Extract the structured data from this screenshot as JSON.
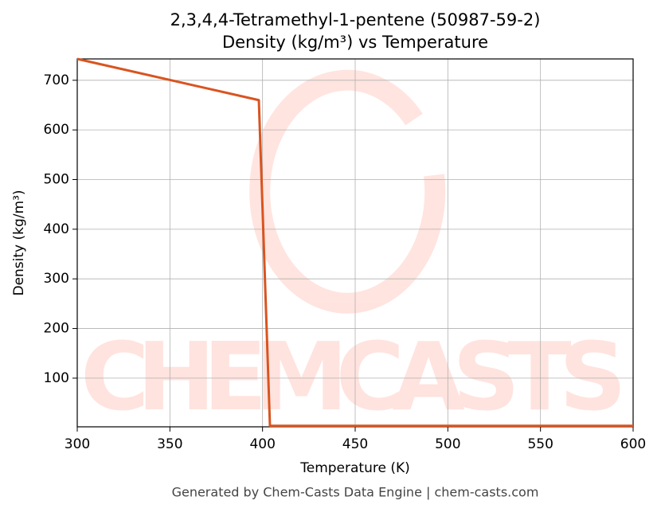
{
  "chart_data": {
    "type": "line",
    "title": "2,3,4,4-Tetramethyl-1-pentene (50987-59-2)",
    "subtitle": "Density (kg/m³) vs Temperature",
    "x_label": "Temperature (K)",
    "y_label": "Density (kg/m³)",
    "footer": "Generated by Chem-Casts Data Engine | chem-casts.com",
    "watermark": "CHEMCASTS",
    "x": [
      300,
      398,
      404,
      600
    ],
    "series": [
      {
        "name": "Density",
        "color": "#d95420",
        "values": [
          743,
          660,
          4,
          4
        ]
      }
    ],
    "xlim": [
      300,
      600
    ],
    "xticks": [
      300,
      350,
      400,
      450,
      500,
      550,
      600
    ],
    "ylim": [
      2,
      743
    ],
    "yticks": [
      100,
      200,
      300,
      400,
      500,
      600,
      700
    ],
    "grid": true
  }
}
